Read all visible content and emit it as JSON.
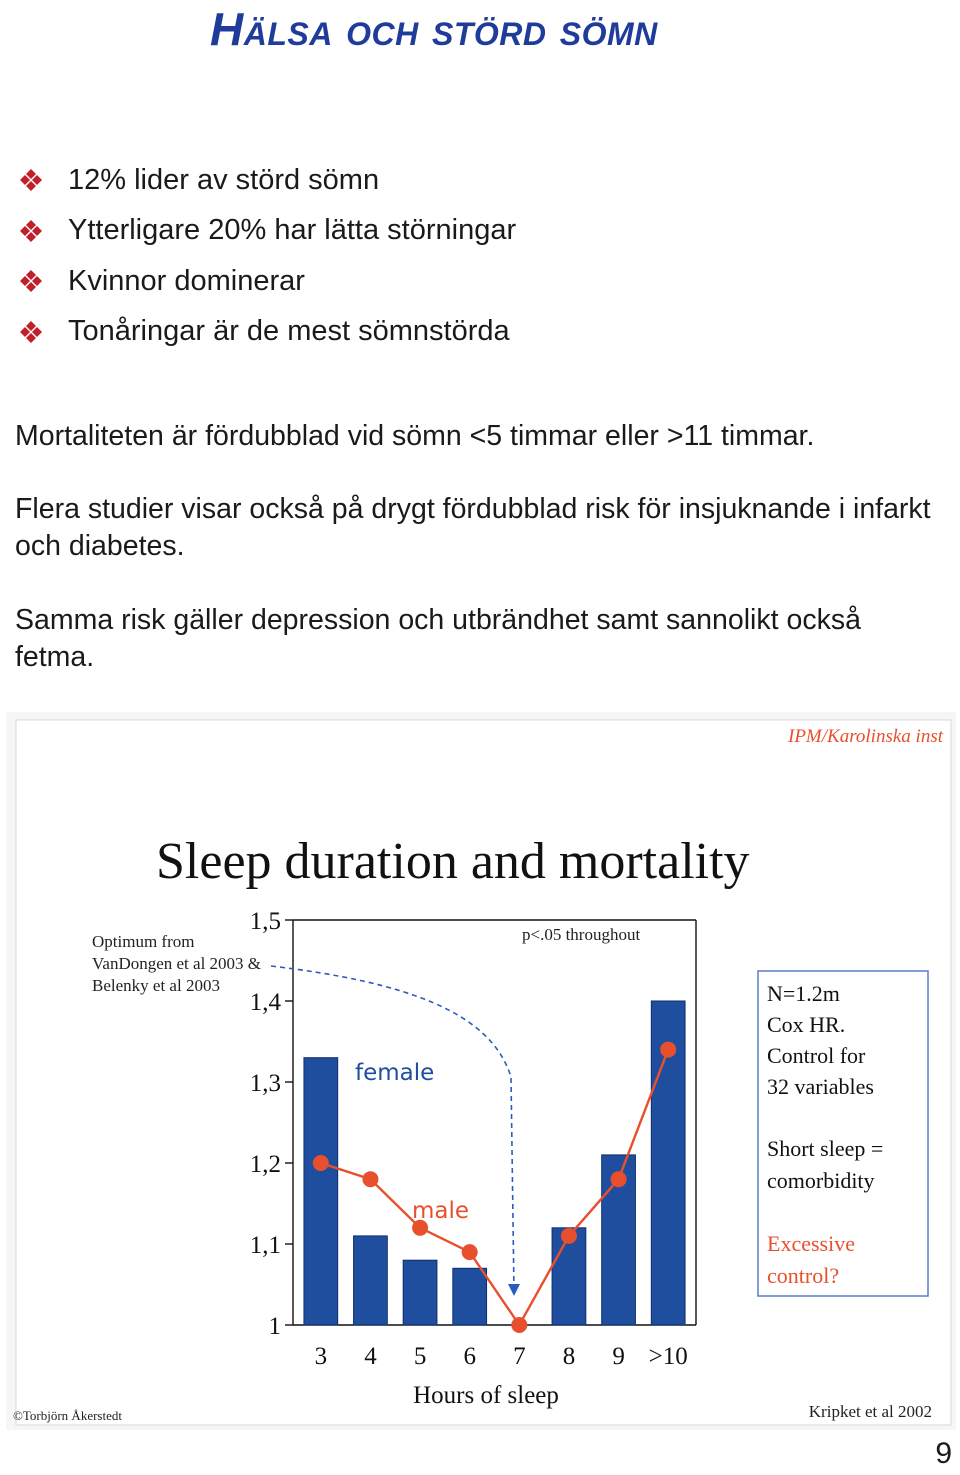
{
  "page": {
    "title": "Hälsa och störd sömn",
    "bullets": [
      "12% lider av störd sömn",
      "Ytterligare 20% har lätta störningar",
      "Kvinnor dominerar",
      "Tonåringar är de mest sömnstörda"
    ],
    "paragraphs": [
      "Mortaliteten är fördubblad vid sömn <5 timmar eller >11 timmar.",
      "Flera studier visar också på drygt fördubblad risk för insjuknande i infarkt och diabetes.",
      "Samma risk gäller depression och utbrändhet samt sannolikt också fetma."
    ],
    "page_number": "9",
    "colors": {
      "title": "#1f3c9a",
      "bullet": "#c0202a"
    },
    "bullet_icon": "diamond-cluster-icon"
  },
  "chart_data": {
    "type": "bar",
    "title": "Sleep duration and mortality",
    "xlabel": "Hours of sleep",
    "ylabel": "",
    "categories": [
      "3",
      "4",
      "5",
      "6",
      "7",
      "8",
      "9",
      ">10"
    ],
    "ylim": [
      1,
      1.5
    ],
    "yticks": [
      "1",
      "1,1",
      "1,2",
      "1,3",
      "1,4",
      "1,5"
    ],
    "series": [
      {
        "name": "female",
        "type": "bar",
        "color": "#1f4e9e",
        "values": [
          1.33,
          1.11,
          1.08,
          1.07,
          null,
          1.12,
          1.21,
          1.4
        ]
      },
      {
        "name": "male",
        "type": "line",
        "color": "#e8502d",
        "values": [
          1.2,
          1.18,
          1.12,
          1.09,
          1.0,
          1.11,
          1.18,
          1.34
        ]
      }
    ],
    "annotations": {
      "source_top": "IPM/Karolinska inst",
      "optimum_note": [
        "Optimum from",
        "VanDongen et al 2003 &",
        "Belenky et al 2003"
      ],
      "p_value": "p<.05 throughout",
      "info_box": [
        "N=1.2m",
        "Cox HR.",
        "Control for",
        "32 variables",
        "Short sleep =",
        "comorbidity",
        "Excessive",
        "control?"
      ],
      "copyright": "©Torbjörn Åkerstedt",
      "reference": "Kripket et al 2002"
    },
    "colors": {
      "bar": "#1f4e9e",
      "line": "#e8502d",
      "accent": "#e8502d",
      "box_border": "#5a7fc8"
    }
  }
}
